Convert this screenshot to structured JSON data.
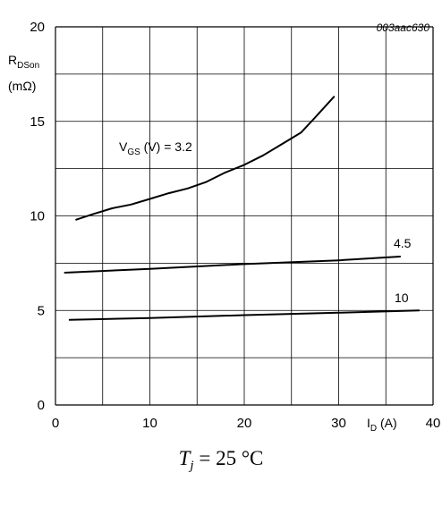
{
  "figure_code": "003aac630",
  "y_axis_label": {
    "main": "R",
    "sub": "DSon",
    "unit": "(mΩ)"
  },
  "x_axis_label": {
    "main": "I",
    "sub": "D",
    "unit": "(A)"
  },
  "condition": {
    "var": "T",
    "sub": "j",
    "rest": " = 25 °C"
  },
  "chart_data": {
    "type": "line",
    "xlim": [
      0,
      40
    ],
    "ylim": [
      0,
      20
    ],
    "x_ticks": [
      0,
      10,
      20,
      30,
      40
    ],
    "y_ticks": [
      0,
      5,
      10,
      15,
      20
    ],
    "grid": true,
    "series": [
      {
        "name": "V_GS (V) = 3.2",
        "label_main": "V",
        "label_sub": "GS",
        "label_rest": " (V) = 3.2",
        "x": [
          2.2,
          4,
          6,
          8,
          10,
          12,
          14,
          16,
          18,
          20,
          22,
          24,
          26,
          27.5,
          29.5
        ],
        "y": [
          9.8,
          10.1,
          10.4,
          10.6,
          10.9,
          11.2,
          11.45,
          11.8,
          12.3,
          12.7,
          13.2,
          13.8,
          14.4,
          15.2,
          16.3
        ]
      },
      {
        "name": "4.5",
        "label_main": "4.5",
        "x": [
          1,
          10,
          20,
          30,
          36.5
        ],
        "y": [
          7.0,
          7.2,
          7.45,
          7.65,
          7.85
        ]
      },
      {
        "name": "10",
        "label_main": "10",
        "x": [
          1.5,
          10,
          20,
          30,
          38.5
        ],
        "y": [
          4.5,
          4.6,
          4.75,
          4.88,
          5.0
        ]
      }
    ]
  }
}
